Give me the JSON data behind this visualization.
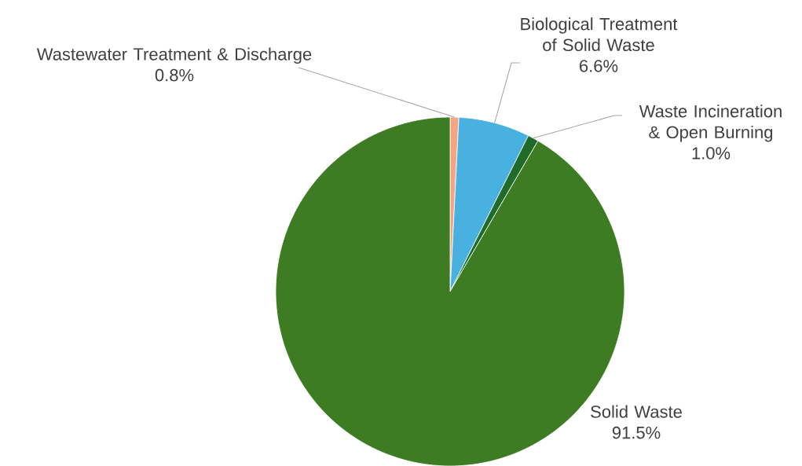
{
  "chart_data": {
    "type": "pie",
    "categories": [
      "Wastewater Treatment & Discharge",
      "Biological Treatment of Solid Waste",
      "Waste Incineration & Open Burning",
      "Solid Waste"
    ],
    "values": [
      0.8,
      6.6,
      1.0,
      91.5
    ],
    "colors": [
      "#f4a582",
      "#48b1e0",
      "#1e6b2a",
      "#3d7c23"
    ],
    "value_labels": [
      "0.8%",
      "6.6%",
      "1.0%",
      "91.5%"
    ]
  }
}
